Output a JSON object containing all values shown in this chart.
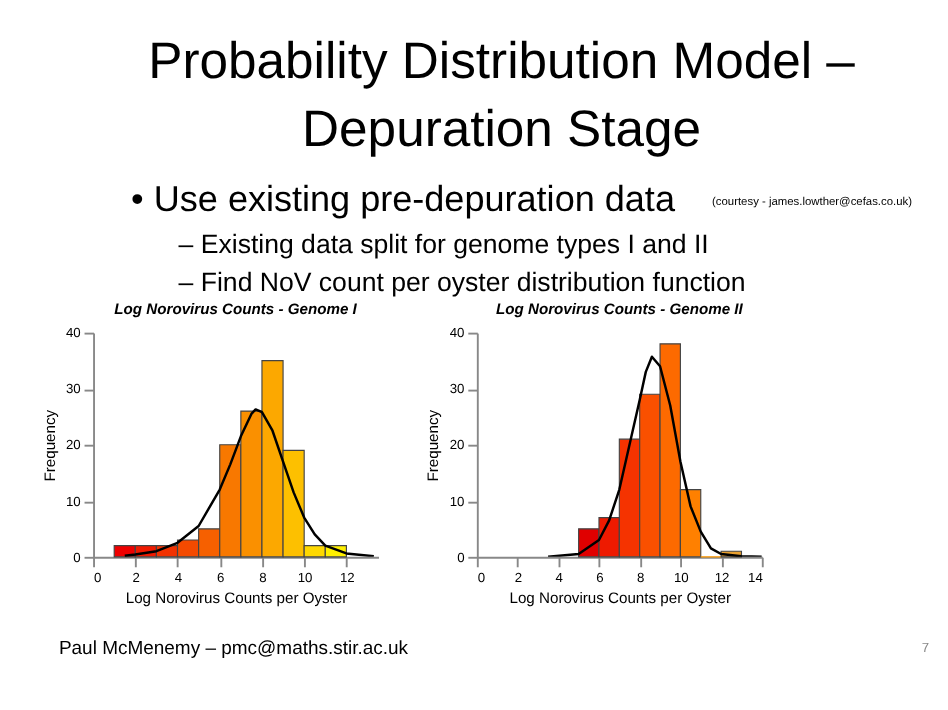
{
  "chart_data": [
    {
      "type": "other",
      "title": "Probability Distribution Model – Depuration Stage",
      "annotations": [
        "• Use existing pre-depuration data",
        "(courtesy - james.lowther@cefas.co.uk)",
        "– Existing data split for genome types I and II",
        "– Find NoV count per oyster distribution function"
      ]
    },
    {
      "type": "histogram",
      "title": "Log Norovirus Counts - Genome I",
      "xlabel": "Log Norovirus Counts per Oyster",
      "ylabel": "Frequency",
      "bins": [
        1,
        2,
        3,
        4,
        5,
        6,
        7,
        8,
        9,
        10,
        11,
        12
      ],
      "values": [
        2,
        2,
        2,
        3,
        5,
        20,
        26,
        35,
        19,
        2,
        2
      ],
      "colors": [
        "#ee0000",
        "#f01a00",
        "#f23200",
        "#f44a00",
        "#f66000",
        "#f87800",
        "#fa9000",
        "#fca800",
        "#fdc000",
        "#fed800",
        "#fff000"
      ],
      "xlim": [
        0,
        13.5
      ],
      "ylim": [
        0,
        40
      ],
      "xticks": [
        0,
        2,
        4,
        6,
        8,
        10,
        12
      ],
      "yticks": [
        0,
        10,
        20,
        30,
        40
      ],
      "series": [
        {
          "type": "line",
          "color": "#000000",
          "x": [
            1.5,
            2,
            3,
            4,
            5,
            6,
            6.5,
            7,
            7.5,
            7.7,
            8,
            8.5,
            9,
            9.5,
            10,
            10.5,
            11,
            12,
            13.3
          ],
          "values": [
            0.2,
            0.4,
            1,
            2.5,
            5.5,
            12,
            16.5,
            21.5,
            25.5,
            26.3,
            25.8,
            22.5,
            17,
            11.5,
            7,
            4,
            2,
            0.6,
            0.1
          ]
        }
      ]
    },
    {
      "type": "histogram",
      "title": "Log Norovirus Counts - Genome II",
      "xlabel": "Log Norovirus Counts per Oyster",
      "ylabel": "Frequency",
      "bins": [
        5,
        6,
        7,
        8,
        9,
        10,
        11,
        12,
        13
      ],
      "values": [
        5,
        7,
        21,
        29,
        38,
        12,
        0,
        1
      ],
      "colors": [
        "#e00000",
        "#ee1a00",
        "#f53300",
        "#fa5000",
        "#fd6a00",
        "#ff8000",
        "#ff9900",
        "#e8a030"
      ],
      "xlim": [
        0,
        14
      ],
      "ylim": [
        0,
        40
      ],
      "xticks": [
        0,
        2,
        4,
        6,
        8,
        10,
        12,
        14
      ],
      "yticks": [
        0,
        10,
        20,
        30,
        40
      ],
      "series": [
        {
          "type": "line",
          "color": "#000000",
          "x": [
            3.5,
            5,
            6,
            6.5,
            7,
            7.5,
            8,
            8.3,
            8.6,
            9,
            9.5,
            10,
            10.5,
            11,
            11.5,
            12,
            13,
            14
          ],
          "values": [
            0,
            0.5,
            3,
            6.5,
            12,
            20,
            28,
            33,
            35.7,
            34,
            27,
            17,
            9,
            4.5,
            1.5,
            0.5,
            0.1,
            0
          ]
        }
      ]
    },
    {
      "type": "other",
      "annotations": [
        "Paul McMenemy – pmc@maths.stir.ac.uk",
        "7"
      ]
    }
  ]
}
